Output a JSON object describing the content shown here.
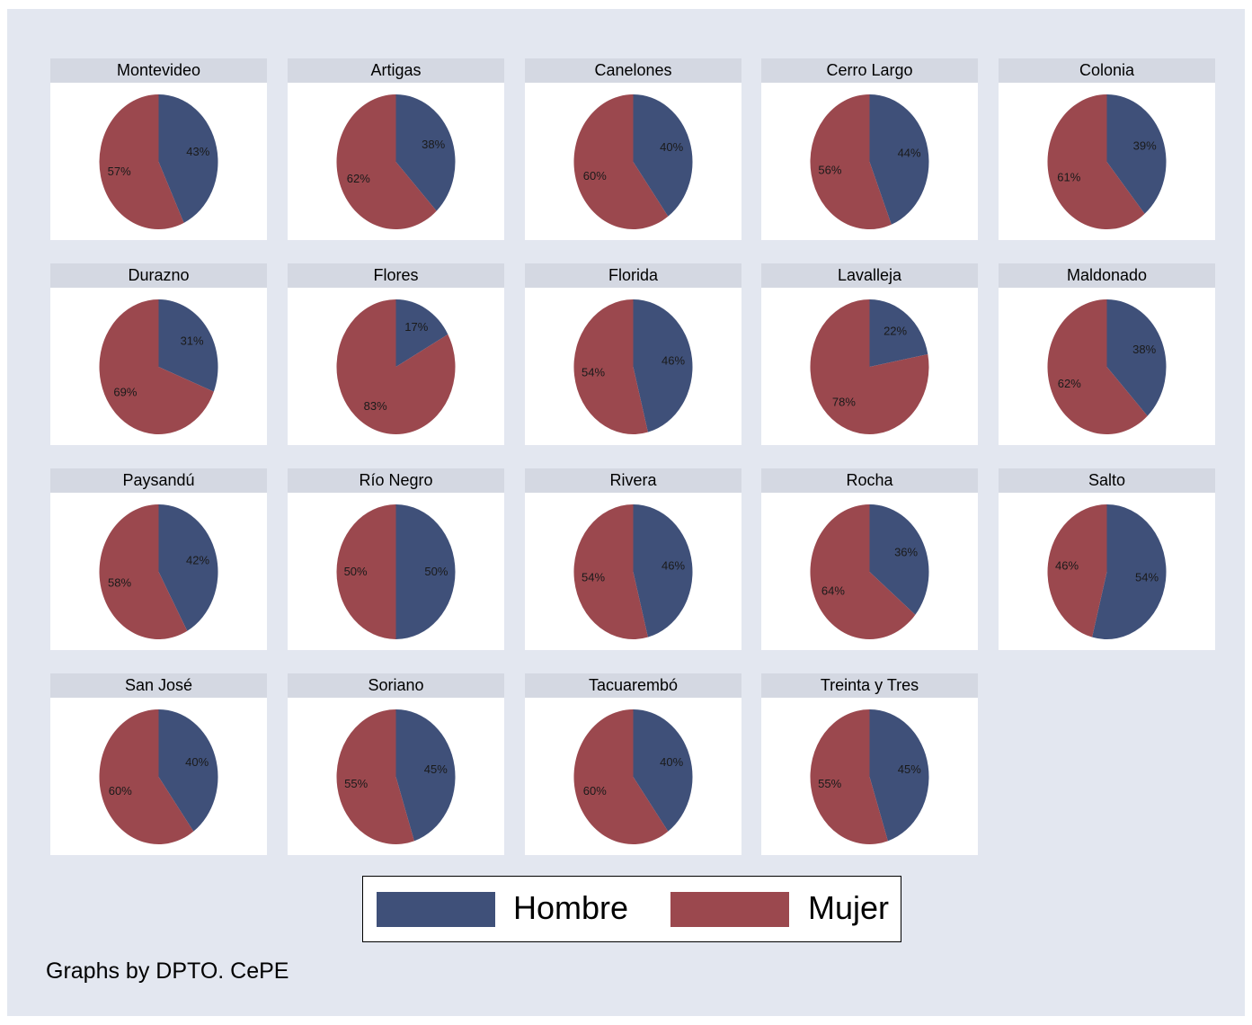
{
  "chart_data": {
    "type": "pie",
    "legend": [
      {
        "name": "Hombre",
        "color": "#3f5079"
      },
      {
        "name": "Mujer",
        "color": "#9b484e"
      }
    ],
    "legend_position": "bottom",
    "note": "Graphs by DPTO. CePE",
    "panels": [
      {
        "title": "Montevideo",
        "hombre": 43,
        "mujer": 57
      },
      {
        "title": "Artigas",
        "hombre": 38,
        "mujer": 62
      },
      {
        "title": "Canelones",
        "hombre": 40,
        "mujer": 60
      },
      {
        "title": "Cerro Largo",
        "hombre": 44,
        "mujer": 56
      },
      {
        "title": "Colonia",
        "hombre": 39,
        "mujer": 61
      },
      {
        "title": "Durazno",
        "hombre": 31,
        "mujer": 69
      },
      {
        "title": "Flores",
        "hombre": 17,
        "mujer": 83
      },
      {
        "title": "Florida",
        "hombre": 46,
        "mujer": 54
      },
      {
        "title": "Lavalleja",
        "hombre": 22,
        "mujer": 78
      },
      {
        "title": "Maldonado",
        "hombre": 38,
        "mujer": 62
      },
      {
        "title": "Paysandú",
        "hombre": 42,
        "mujer": 58
      },
      {
        "title": "Río Negro",
        "hombre": 50,
        "mujer": 50
      },
      {
        "title": "Rivera",
        "hombre": 46,
        "mujer": 54
      },
      {
        "title": "Rocha",
        "hombre": 36,
        "mujer": 64
      },
      {
        "title": "Salto",
        "hombre": 54,
        "mujer": 46
      },
      {
        "title": "San José",
        "hombre": 40,
        "mujer": 60
      },
      {
        "title": "Soriano",
        "hombre": 45,
        "mujer": 55
      },
      {
        "title": "Tacuarembó",
        "hombre": 40,
        "mujer": 60
      },
      {
        "title": "Treinta y Tres",
        "hombre": 45,
        "mujer": 55
      }
    ]
  }
}
